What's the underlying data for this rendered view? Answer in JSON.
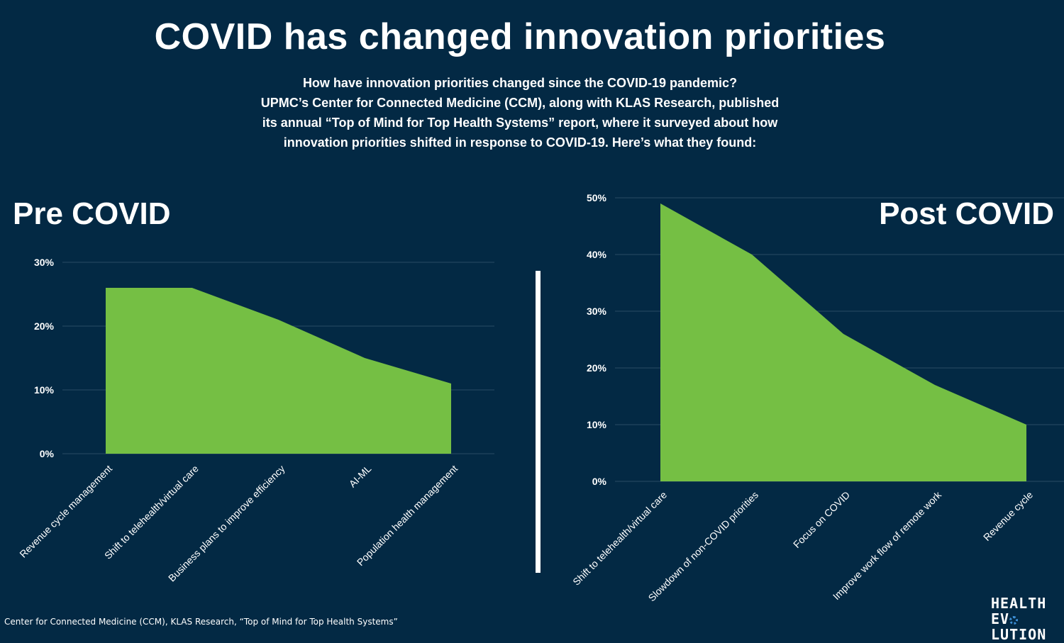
{
  "header": {
    "title": "COVID has changed innovation priorities",
    "intro_lines": [
      "How have innovation priorities changed since the COVID-19 pandemic?",
      "UPMC’s Center for Connected Medicine (CCM), along with KLAS Research, published",
      "its annual “Top of Mind for Top Health Systems” report, where it surveyed about how",
      "innovation priorities shifted in response to COVID-19. Here’s what they found:"
    ]
  },
  "panels": {
    "pre_heading": "Pre COVID",
    "post_heading": "Post COVID"
  },
  "footer": {
    "source": "Center for Connected Medicine (CCM), KLAS Research, “Top of Mind for Top Health Systems”",
    "logo_line1": "HEALTH",
    "logo_line2_a": "EV",
    "logo_line2_b": "LUTION"
  },
  "colors": {
    "background": "#032944",
    "area": "#75bf44",
    "grid": "#2a4b63",
    "text": "#ffffff"
  },
  "chart_data": [
    {
      "type": "area",
      "title": "Pre COVID",
      "categories": [
        "Revenue cycle management",
        "Shift to telehealth/virtual care",
        "Business plans to improve efficiency",
        "AI-ML",
        "Population health management"
      ],
      "values": [
        26,
        26,
        21,
        15,
        11
      ],
      "unit": "%",
      "ylim": [
        0,
        30
      ],
      "yticks": [
        "0%",
        "10%",
        "20%",
        "30%"
      ],
      "grid": true
    },
    {
      "type": "area",
      "title": "Post COVID",
      "categories": [
        "Shift to telehealth/virtual care",
        "Slowdown of non-COVID priorities",
        "Focus on COVID",
        "Improve work flow of remote work",
        "Revenue cycle"
      ],
      "values": [
        49,
        40,
        26,
        17,
        10
      ],
      "unit": "%",
      "ylim": [
        0,
        50
      ],
      "yticks": [
        "0%",
        "10%",
        "20%",
        "30%",
        "40%",
        "50%"
      ],
      "grid": true
    }
  ]
}
